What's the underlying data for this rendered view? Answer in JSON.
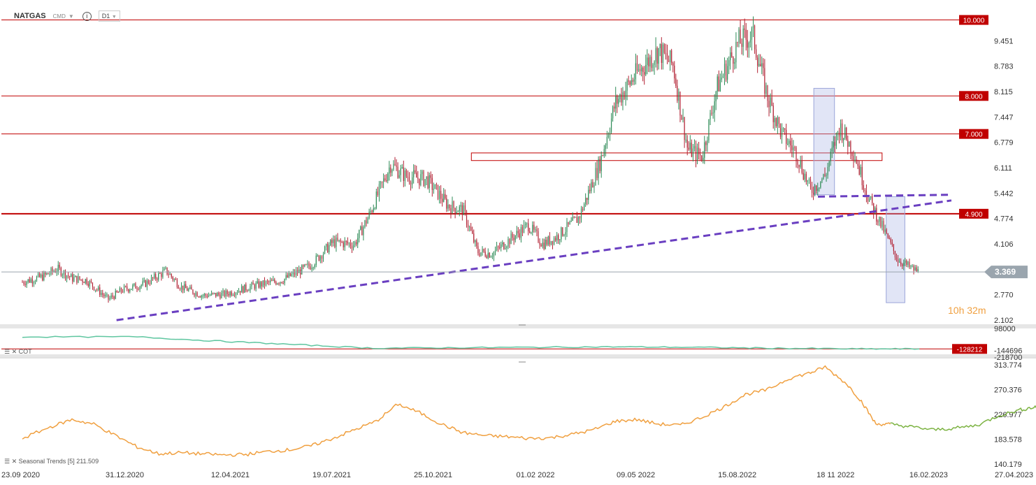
{
  "header": {
    "symbol": "NATGAS",
    "sub": "CMD",
    "timeframe": "D1"
  },
  "countdown": {
    "hours": "10h",
    "minutes": "32m"
  },
  "colors": {
    "up": "#2e8b57",
    "down": "#b22234",
    "level": "#c00000",
    "trend": "#6a3fc1",
    "cot": "#5fc6a0",
    "seasonal_past": "#f0a040",
    "seasonal_future": "#7cb342",
    "countdown": "#f0a040",
    "current": "#9aa5ae"
  },
  "cot_label": "COT",
  "seasonal_label": "Seasonal Trends [5] 211.509",
  "x_axis": {
    "ticks": [
      "23.09 2020",
      "31.12.2020",
      "12.04.2021",
      "19.07.2021",
      "25.10.2021",
      "01.02 2022",
      "09.05 2022",
      "15.08.2022",
      "18 11 2022",
      "16.02.2023",
      "27.04.2023"
    ]
  },
  "chart_data": [
    {
      "type": "candlestick",
      "title": "NATGAS",
      "y_ticks": [
        "9.451",
        "8.783",
        "8.115",
        "7.447",
        "6.779",
        "6.111",
        "5.442",
        "4.774",
        "4.106",
        "3.438",
        "2.770",
        "2.102"
      ],
      "ylim": [
        2.102,
        10.12
      ],
      "levels": [
        {
          "label": "10.000",
          "value": 10.0
        },
        {
          "label": "8.000",
          "value": 8.0
        },
        {
          "label": "7.000",
          "value": 7.0
        },
        {
          "label": "4.900",
          "value": 4.9
        }
      ],
      "current_price": {
        "label": "3.369",
        "value": 3.369
      },
      "zone_rectangle": {
        "from": "12.2021",
        "to": "02.01.2023",
        "low": 6.3,
        "high": 6.5
      },
      "trendlines": [
        {
          "from": [
            "23.12.2020",
            2.1
          ],
          "to": [
            "10.03.2023",
            5.25
          ]
        },
        {
          "from": [
            "11.2022",
            5.35
          ],
          "to": [
            "10.03.2023",
            5.4
          ]
        }
      ],
      "highlight_boxes": [
        {
          "from": "28.10.2022",
          "to": "17.11.2022",
          "low": 5.4,
          "high": 8.2
        },
        {
          "from": "06.01.2023",
          "to": "24.01.2023",
          "low": 2.56,
          "high": 5.35
        }
      ],
      "path_keypoints": [
        [
          "23.09 2020",
          3.1
        ],
        [
          "13.10.2020",
          3.25
        ],
        [
          "27.10.2020",
          3.45
        ],
        [
          "10.11.2020",
          3.2
        ],
        [
          "24.11.2020",
          3.15
        ],
        [
          "15.12.2020",
          2.65
        ],
        [
          "29.12.2020",
          2.9
        ],
        [
          "19.01.2021",
          3.05
        ],
        [
          "09.02.2021",
          3.4
        ],
        [
          "23.02.2021",
          2.98
        ],
        [
          "16.03.2021",
          2.75
        ],
        [
          "06.04.2021",
          2.78
        ],
        [
          "04.05.2021",
          3.0
        ],
        [
          "01.06.2021",
          3.15
        ],
        [
          "29.06.2021",
          3.55
        ],
        [
          "20.07.2021",
          4.15
        ],
        [
          "10.08.2021",
          4.1
        ],
        [
          "24.08.2021",
          4.85
        ],
        [
          "14.09.2021",
          6.2
        ],
        [
          "28.09.2021",
          5.9
        ],
        [
          "19.10.2021",
          5.8
        ],
        [
          "09.11.2021",
          5.1
        ],
        [
          "23.11.2021",
          5.0
        ],
        [
          "07.12.2021",
          3.9
        ],
        [
          "21.12.2021",
          3.85
        ],
        [
          "11.01.2022",
          4.3
        ],
        [
          "25.01.2022",
          4.6
        ],
        [
          "08.02.2022",
          4.1
        ],
        [
          "22.02.2022",
          4.3
        ],
        [
          "15.03.2022",
          4.8
        ],
        [
          "05.04.2022",
          6.3
        ],
        [
          "19.04.2022",
          7.8
        ],
        [
          "10.05.2022",
          8.6
        ],
        [
          "31.05.2022",
          9.2
        ],
        [
          "14.06.2022",
          8.8
        ],
        [
          "28.06.2022",
          6.6
        ],
        [
          "12.07.2022",
          6.4
        ],
        [
          "26.07.2022",
          8.2
        ],
        [
          "16.08.2022",
          9.4
        ],
        [
          "30.08.2022",
          9.6
        ],
        [
          "13.09.2022",
          8.0
        ],
        [
          "27.09.2022",
          7.0
        ],
        [
          "11.10.2022",
          6.5
        ],
        [
          "25.10.2022",
          5.5
        ],
        [
          "08.11.2022",
          5.9
        ],
        [
          "22.11.2022",
          7.2
        ],
        [
          "06.12.2022",
          6.5
        ],
        [
          "20.12.2022",
          5.3
        ],
        [
          "03.01.2023",
          4.5
        ],
        [
          "17.01.2023",
          3.7
        ],
        [
          "31.01.2023",
          3.45
        ],
        [
          "07.02.2023",
          3.37
        ]
      ]
    },
    {
      "type": "line",
      "title": "COT",
      "y_ticks": [
        "98000",
        "-144696",
        "-218700"
      ],
      "ylim": [
        -218700,
        98000
      ],
      "level": {
        "label": "-128212",
        "value": -128212
      },
      "keypoints": [
        [
          "23.09 2020",
          5000
        ],
        [
          "12.01.2021",
          5000
        ],
        [
          "28.03.2021",
          -40000
        ],
        [
          "13.06.2021",
          -80000
        ],
        [
          "28.08.2021",
          -120000
        ],
        [
          "14.11.2021",
          -115000
        ],
        [
          "30.01.2022",
          -110000
        ],
        [
          "17.04.2022",
          -105000
        ],
        [
          "03.07.2022",
          -110000
        ],
        [
          "18.09.2022",
          -120000
        ],
        [
          "04.12.2022",
          -128000
        ],
        [
          "07.02.2023",
          -128212
        ]
      ]
    },
    {
      "type": "line",
      "title": "Seasonal Trends [5]",
      "y_ticks": [
        "313.774",
        "270.376",
        "226.977",
        "183.578",
        "140.179"
      ],
      "ylim": [
        140.179,
        313.774
      ],
      "value_label": "211.509",
      "past": [
        [
          "23.09 2020",
          185
        ],
        [
          "20.10.2020",
          205
        ],
        [
          "10.11.2020",
          218
        ],
        [
          "01.12.2020",
          210
        ],
        [
          "22.12.2020",
          190
        ],
        [
          "12.01.2021",
          170
        ],
        [
          "02.02.2021",
          158
        ],
        [
          "23.02.2021",
          160
        ],
        [
          "16.03.2021",
          158
        ],
        [
          "06.04.2021",
          156
        ],
        [
          "27.04.2021",
          157
        ],
        [
          "18.05.2021",
          162
        ],
        [
          "08.06.2021",
          165
        ],
        [
          "29.06.2021",
          172
        ],
        [
          "20.07.2021",
          185
        ],
        [
          "10.08.2021",
          200
        ],
        [
          "31.08.2021",
          215
        ],
        [
          "21.09.2021",
          245
        ],
        [
          "12.10.2021",
          230
        ],
        [
          "02.11.2021",
          210
        ],
        [
          "23.11.2021",
          195
        ],
        [
          "14.12.2021",
          190
        ],
        [
          "04.01.2022",
          188
        ],
        [
          "25.01.2022",
          185
        ],
        [
          "15.02.2022",
          186
        ],
        [
          "08.03.2022",
          192
        ],
        [
          "29.03.2022",
          200
        ],
        [
          "19.04.2022",
          215
        ],
        [
          "10.05.2022",
          218
        ],
        [
          "31.05.2022",
          210
        ],
        [
          "21.06.2022",
          208
        ],
        [
          "12.07.2022",
          222
        ],
        [
          "02.08.2022",
          240
        ],
        [
          "23.08.2022",
          262
        ],
        [
          "13.09.2022",
          270
        ],
        [
          "04.10.2022",
          290
        ],
        [
          "25.10.2022",
          300
        ],
        [
          "08.11.2022",
          310
        ],
        [
          "29.11.2022",
          280
        ],
        [
          "13.12.2022",
          250
        ],
        [
          "27.12.2022",
          210
        ],
        [
          "10.01.2023",
          210
        ]
      ],
      "future": [
        [
          "10.01.2023",
          210
        ],
        [
          "31.01.2023",
          205
        ],
        [
          "21.02.2023",
          200
        ],
        [
          "14.03.2023",
          203
        ],
        [
          "04.04.2023",
          208
        ],
        [
          "25.04.2023",
          225
        ],
        [
          "16.05.2023",
          235
        ],
        [
          "30.05.2023",
          240
        ],
        [
          "06.06.2023",
          238
        ]
      ]
    }
  ]
}
